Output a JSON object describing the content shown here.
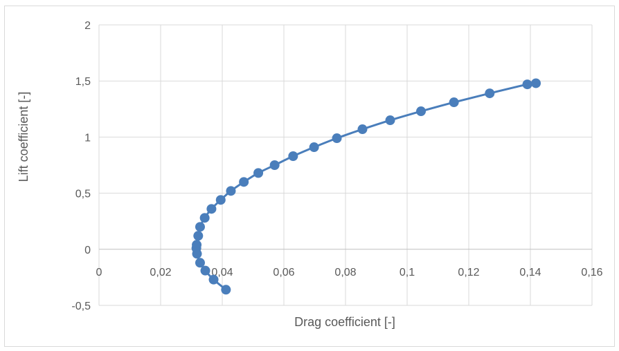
{
  "chart_data": {
    "type": "scatter",
    "title": "",
    "xlabel": "Drag coefficient [-]",
    "ylabel": "Lift coefficient [-]",
    "xlim": [
      0,
      0.16
    ],
    "ylim": [
      -0.5,
      2
    ],
    "x_ticks": [
      0,
      0.02,
      0.04,
      0.06,
      0.08,
      0.1,
      0.12,
      0.14,
      0.16
    ],
    "x_tick_labels": [
      "0",
      "0,02",
      "0,04",
      "0,06",
      "0,08",
      "0,1",
      "0,12",
      "0,14",
      "0,16"
    ],
    "y_ticks": [
      -0.5,
      0,
      0.5,
      1,
      1.5,
      2
    ],
    "y_tick_labels": [
      "-0,5",
      "0",
      "0,5",
      "1",
      "1,5",
      "2"
    ],
    "grid": true,
    "legend": "none",
    "series": [
      {
        "color": "#4a7ebb",
        "line": "smooth",
        "x": [
          0.0412,
          0.0372,
          0.0345,
          0.0328,
          0.0318,
          0.0316,
          0.0317,
          0.0322,
          0.0328,
          0.0343,
          0.0365,
          0.0395,
          0.0428,
          0.047,
          0.0517,
          0.057,
          0.063,
          0.0698,
          0.0772,
          0.0855,
          0.0945,
          0.1045,
          0.1152,
          0.1268,
          0.139,
          0.1418
        ],
        "y": [
          -0.36,
          -0.27,
          -0.19,
          -0.12,
          -0.04,
          0.01,
          0.04,
          0.12,
          0.2,
          0.28,
          0.36,
          0.44,
          0.52,
          0.6,
          0.68,
          0.75,
          0.83,
          0.91,
          0.99,
          1.07,
          1.15,
          1.23,
          1.31,
          1.39,
          1.47,
          1.48
        ]
      }
    ]
  }
}
